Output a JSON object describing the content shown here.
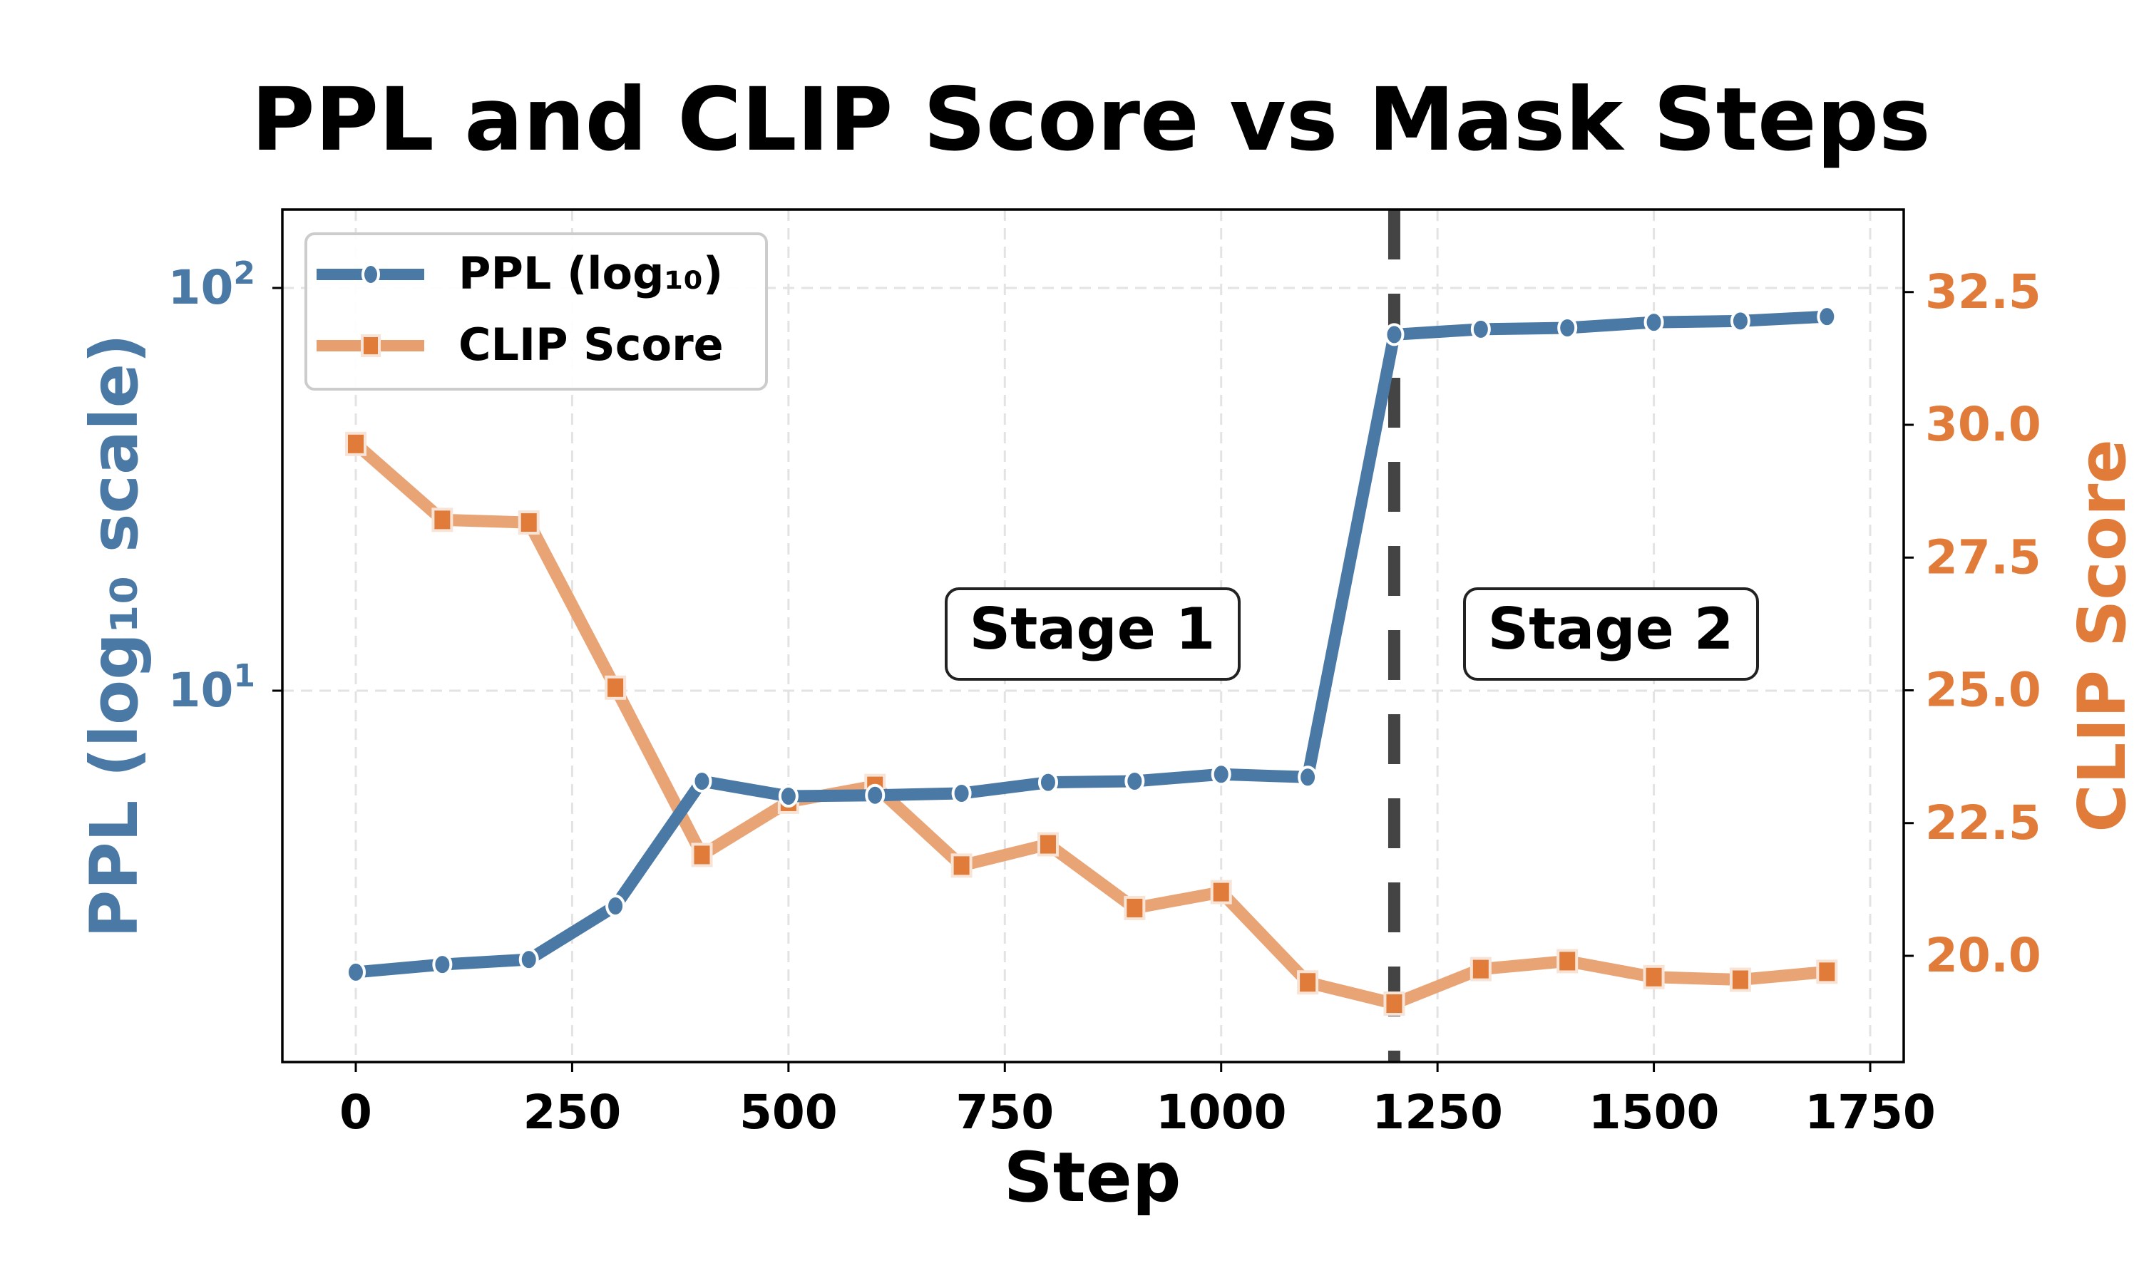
{
  "chart_data": {
    "type": "line",
    "title": "PPL and CLIP Score vs Mask Steps",
    "xlabel": "Step",
    "ylabel_left": "PPL (log₁₀ scale)",
    "ylabel_right": "CLIP Score",
    "x": [
      0,
      100,
      200,
      300,
      400,
      500,
      600,
      700,
      800,
      900,
      1000,
      1100,
      1200,
      1300,
      1400,
      1500,
      1600,
      1700
    ],
    "series": [
      {
        "name": "PPL (log₁₀)",
        "axis": "left",
        "scale": "log",
        "color": "#4a79a5",
        "marker": "circle",
        "values": [
          2.0,
          2.09,
          2.15,
          2.92,
          5.96,
          5.47,
          5.5,
          5.56,
          5.92,
          5.96,
          6.2,
          6.1,
          76.6,
          79.0,
          79.6,
          82.2,
          82.8,
          84.9
        ]
      },
      {
        "name": "CLIP Score",
        "axis": "right",
        "scale": "linear",
        "color": "#e07b39",
        "line_color": "#e89f6f",
        "marker": "square",
        "values": [
          29.64,
          28.21,
          28.16,
          25.05,
          21.9,
          22.9,
          23.2,
          21.7,
          22.1,
          20.9,
          21.2,
          19.5,
          19.1,
          19.75,
          19.9,
          19.6,
          19.55,
          19.7
        ]
      }
    ],
    "x_ticks": [
      0,
      250,
      500,
      750,
      1000,
      1250,
      1500,
      1750
    ],
    "x_tick_labels": [
      "0",
      "250",
      "500",
      "750",
      "1000",
      "1250",
      "1500",
      "1750"
    ],
    "left_ticks": [
      {
        "base": "10",
        "exp": "1",
        "value": 10
      },
      {
        "base": "10",
        "exp": "2",
        "value": 100
      }
    ],
    "right_ticks": [
      "20.0",
      "22.5",
      "25.0",
      "27.5",
      "30.0",
      "32.5"
    ],
    "right_tick_values": [
      20.0,
      22.5,
      25.0,
      27.5,
      30.0,
      32.5
    ],
    "xlim": [
      -85,
      1785
    ],
    "ylim_right": [
      18.0,
      34.0
    ],
    "grid": true,
    "legend_position": "upper left",
    "annotations": [
      {
        "type": "vline",
        "x": 1200,
        "style": "dashed",
        "color": "#444444"
      },
      {
        "type": "text_box",
        "text": "Stage 1",
        "x": 850
      },
      {
        "type": "text_box",
        "text": "Stage 2",
        "x": 1450
      }
    ]
  }
}
